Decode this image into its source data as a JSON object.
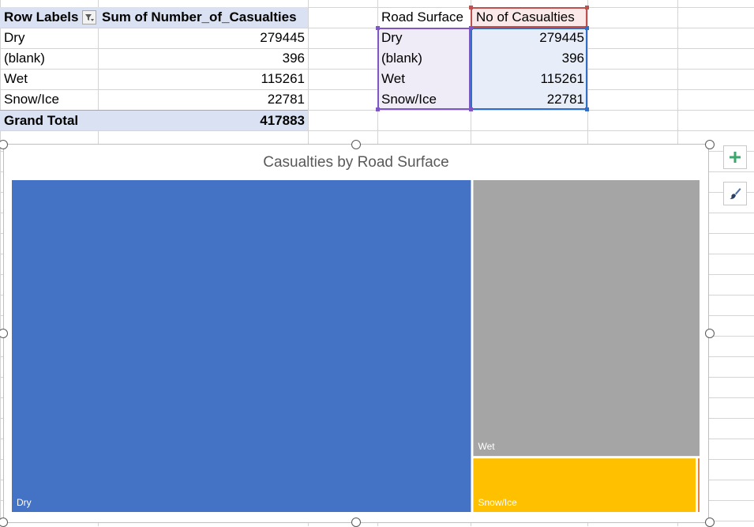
{
  "pivot": {
    "headers": {
      "row_labels": "Row Labels",
      "sum_label": "Sum of Number_of_Casualties"
    },
    "rows": [
      {
        "label": "Dry",
        "value": "279445"
      },
      {
        "label": "(blank)",
        "value": "396"
      },
      {
        "label": "Wet",
        "value": "115261"
      },
      {
        "label": "Snow/Ice",
        "value": "22781"
      }
    ],
    "total": {
      "label": "Grand Total",
      "value": "417883"
    }
  },
  "source_table": {
    "headers": {
      "col1": "Road Surface",
      "col2": "No of Casualties"
    },
    "rows": [
      {
        "label": "Dry",
        "value": "279445"
      },
      {
        "label": "(blank)",
        "value": "396"
      },
      {
        "label": "Wet",
        "value": "115261"
      },
      {
        "label": "Snow/Ice",
        "value": "22781"
      }
    ]
  },
  "chart_data": {
    "type": "treemap",
    "title": "Casualties by Road Surface",
    "labels": [
      "Dry",
      "(blank)",
      "Wet",
      "Snow/Ice"
    ],
    "values": [
      279445,
      396,
      115261,
      22781
    ],
    "colors": [
      "#4472c4",
      "#ed7d31",
      "#a5a5a5",
      "#ffc000"
    ],
    "data_labels": {
      "Dry": "Dry",
      "Wet": "Wet",
      "Snow/Ice": "Snow/Ice"
    }
  },
  "icons": {
    "add": "plus-icon",
    "style": "paintbrush-icon",
    "filter": "filter-dropdown-icon"
  },
  "colors": {
    "pivot_header_bg": "#d9e1f2",
    "selection_purple": "#7e57c2",
    "selection_blue": "#2f6fc9",
    "selection_red": "#c0504d",
    "plus_icon": "#3aa76d"
  }
}
